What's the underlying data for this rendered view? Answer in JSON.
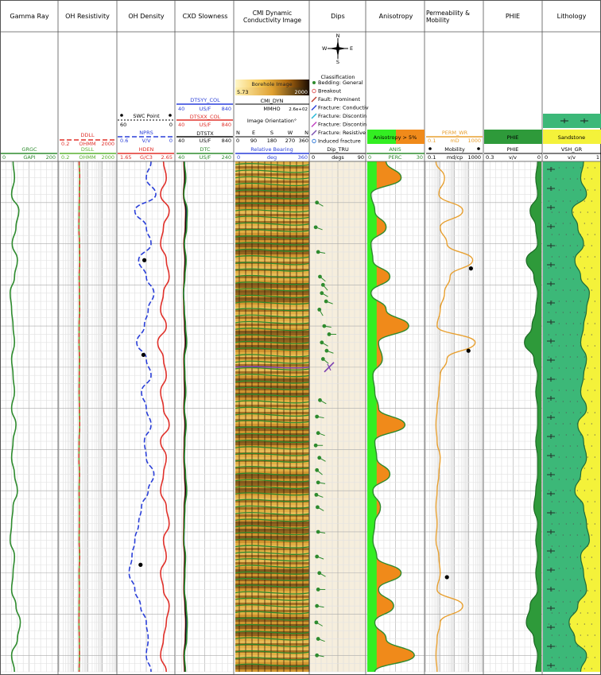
{
  "tracks": [
    {
      "title": "Gamma Ray"
    },
    {
      "title": "OH Resistivity"
    },
    {
      "title": "OH Density"
    },
    {
      "title": "CXD Slowness"
    },
    {
      "title": "CMI Dynamic Conductivity Image"
    },
    {
      "title": "Dips"
    },
    {
      "title": "Anisotropy"
    },
    {
      "title": "Permeability & Mobility"
    },
    {
      "title": "PHIE"
    },
    {
      "title": "Lithology"
    }
  ],
  "headers": {
    "gr": {
      "curve": "GRGC",
      "left": "0",
      "unit": "GAPI",
      "right": "200",
      "color": "#2e8b2e"
    },
    "res": {
      "ddll": {
        "curve": "DDLL",
        "left": "0.2",
        "unit": "OHMM",
        "right": "2000",
        "color": "#e0302a"
      },
      "dsll": {
        "curve": "DSLL",
        "left": "0.2",
        "unit": "OHMM",
        "right": "2000",
        "color": "#5ab030"
      }
    },
    "den": {
      "swc": {
        "label": "SWC Point",
        "left": "60",
        "right": "0"
      },
      "nprs": {
        "curve": "NPRS",
        "left": "0.6",
        "unit": "V/V",
        "right": "0",
        "color": "#2a3fd8"
      },
      "hden": {
        "curve": "HDEN",
        "left": "1.65",
        "unit": "G/C3",
        "right": "2.65",
        "color": "#e0302a"
      }
    },
    "son": {
      "dtsyy": {
        "curve": "DTSYY_COL",
        "left": "40",
        "unit": "US/F",
        "right": "840",
        "color": "#2a3fd8"
      },
      "dtsxx": {
        "curve": "DTSXX_COL",
        "left": "40",
        "unit": "US/F",
        "right": "840",
        "color": "#e0302a"
      },
      "dtstx": {
        "curve": "DTSTX",
        "left": "40",
        "unit": "US/F",
        "right": "840",
        "color": "#111111"
      },
      "dtc": {
        "curve": "DTC",
        "left": "40",
        "unit": "US/F",
        "right": "240",
        "color": "#2e8b2e"
      }
    },
    "img": {
      "borehole_label": "Borehole Image",
      "bh_left": "5.73",
      "bh_right": "2000",
      "cmi_label": "CMI_DYN",
      "cmi_unit": "MMHO",
      "cmi_right": "2.6e+02",
      "orientation_label": "Image Orientation°",
      "compass": [
        "N",
        "E",
        "S",
        "W",
        "N"
      ],
      "degrees": [
        "0",
        "90",
        "180",
        "270",
        "360"
      ],
      "rb_curve": "Relative Bearing",
      "rb_left": "0",
      "rb_unit": "deg",
      "rb_right": "360"
    },
    "dips": {
      "compass": [
        "N",
        "E",
        "S",
        "W"
      ],
      "classification_title": "Classification",
      "classes": [
        {
          "label": "Bedding: General",
          "color": "#2e8b2e",
          "symbol": "dot"
        },
        {
          "label": "Breakout",
          "color": "#e06060",
          "symbol": "ring"
        },
        {
          "label": "Fault: Prominent",
          "color": "#c0392b",
          "symbol": "slash"
        },
        {
          "label": "Fracture: Conductiv",
          "color": "#2a3fd8",
          "symbol": "slash"
        },
        {
          "label": "Fracture: Discontin",
          "color": "#22b8d8",
          "symbol": "slash"
        },
        {
          "label": "Fracture: Discontin",
          "color": "#c040c0",
          "symbol": "slash"
        },
        {
          "label": "Fracture: Resistive",
          "color": "#7a4fb0",
          "symbol": "slash"
        },
        {
          "label": "Induced fracture",
          "color": "#3a7fd8",
          "symbol": "ring"
        }
      ],
      "curve": "Dip_TRU",
      "left": "0",
      "unit": "degs",
      "right": "90"
    },
    "anis": {
      "fill_label": "Anisotropy > 5%",
      "curve": "ANIS",
      "left": "0",
      "unit": "PERC",
      "right": "30"
    },
    "perm": {
      "perm_curve": "PERM_WR",
      "perm_left": "0.1",
      "perm_unit": "mD",
      "perm_right": "1000",
      "mob_curve": "Mobility",
      "mob_left": "0.1",
      "mob_unit": "md/cp",
      "mob_right": "1000"
    },
    "phie": {
      "fill_label": "PHIE",
      "curve": "PHIE",
      "left": "0.3",
      "unit": "v/v",
      "right": "0"
    },
    "litho": {
      "sand_label": "Sandstone",
      "curve": "VSH_GR",
      "left": "0",
      "unit": "v/v",
      "right": "1"
    }
  },
  "chart_data": {
    "type": "line",
    "title": "",
    "depth": [
      0,
      20,
      40,
      60,
      80,
      100,
      120,
      140,
      160,
      180,
      200,
      220,
      240,
      260,
      280,
      300,
      320,
      340,
      360,
      380,
      400,
      420,
      440,
      460,
      480,
      500,
      520,
      540,
      560,
      580,
      600,
      620
    ],
    "series": [
      {
        "name": "GRGC",
        "unit": "GAPI",
        "range": [
          0,
          200
        ],
        "values": [
          45,
          50,
          40,
          65,
          55,
          42,
          60,
          50,
          35,
          40,
          45,
          50,
          40,
          45,
          50,
          40,
          55,
          45,
          40,
          50,
          60,
          45,
          40,
          35,
          50,
          45,
          40,
          55,
          70,
          60,
          40,
          50
        ]
      },
      {
        "name": "DDLL",
        "unit": "OHMM",
        "range": [
          0.2,
          2000
        ],
        "scale": "log",
        "values": [
          5,
          5.5,
          5.2,
          5,
          4.8,
          5.3,
          5.5,
          5,
          5.2,
          5.4,
          5,
          4.9,
          5.3,
          5.1,
          5,
          5.2,
          5.5,
          5,
          4.8,
          5.3,
          5,
          5.2,
          5.1,
          5,
          5.4,
          5,
          5.2,
          5,
          4.9,
          5.1,
          5.3,
          5
        ]
      },
      {
        "name": "DSLL",
        "unit": "OHMM",
        "range": [
          0.2,
          2000
        ],
        "scale": "log",
        "values": [
          5,
          5.4,
          5.2,
          5,
          4.9,
          5.2,
          5.4,
          5.1,
          5.2,
          5.3,
          5,
          5,
          5.2,
          5.1,
          5,
          5.2,
          5.4,
          5,
          4.9,
          5.2,
          5,
          5.1,
          5.1,
          5,
          5.3,
          5,
          5.1,
          5,
          4.9,
          5.1,
          5.2,
          5
        ]
      },
      {
        "name": "NPRS",
        "unit": "V/V",
        "range": [
          0.6,
          0
        ],
        "values": [
          0.25,
          0.3,
          0.2,
          0.42,
          0.3,
          0.25,
          0.38,
          0.3,
          0.22,
          0.28,
          0.32,
          0.4,
          0.3,
          0.25,
          0.35,
          0.3,
          0.25,
          0.32,
          0.3,
          0.22,
          0.28,
          0.35,
          0.38,
          0.42,
          0.45,
          0.48,
          0.42,
          0.36,
          0.3,
          0.28,
          0.3,
          0.25
        ]
      },
      {
        "name": "HDEN",
        "unit": "G/C3",
        "range": [
          1.65,
          2.65
        ],
        "values": [
          2.45,
          2.5,
          2.4,
          2.55,
          2.45,
          2.4,
          2.5,
          2.55,
          2.45,
          2.4,
          2.5,
          2.35,
          2.45,
          2.5,
          2.4,
          2.45,
          2.55,
          2.4,
          2.5,
          2.45,
          2.4,
          2.5,
          2.55,
          2.45,
          2.5,
          2.4,
          2.45,
          2.55,
          2.5,
          2.45,
          2.4,
          2.5
        ]
      },
      {
        "name": "DTSYY_COL",
        "unit": "US/F",
        "range": [
          40,
          840
        ],
        "values": [
          160,
          170,
          150,
          190,
          180,
          160,
          175,
          165,
          150,
          160,
          170,
          180,
          160,
          165,
          170,
          160,
          175,
          165,
          160,
          170,
          180,
          165,
          160,
          155,
          170,
          165,
          160,
          175,
          185,
          180,
          160,
          170
        ]
      },
      {
        "name": "DTSXX_COL",
        "unit": "US/F",
        "range": [
          40,
          840
        ],
        "values": [
          150,
          160,
          145,
          175,
          170,
          150,
          165,
          155,
          145,
          150,
          160,
          170,
          150,
          155,
          160,
          150,
          165,
          155,
          150,
          160,
          170,
          155,
          150,
          145,
          160,
          155,
          150,
          165,
          175,
          170,
          150,
          160
        ]
      },
      {
        "name": "DTSTX",
        "unit": "US/F",
        "range": [
          40,
          840
        ],
        "values": [
          155,
          165,
          148,
          180,
          175,
          155,
          170,
          160,
          148,
          155,
          165,
          175,
          155,
          160,
          165,
          155,
          170,
          160,
          155,
          165,
          175,
          160,
          155,
          150,
          165,
          160,
          155,
          170,
          180,
          175,
          155,
          165
        ]
      },
      {
        "name": "DTC",
        "unit": "US/F",
        "range": [
          40,
          240
        ],
        "values": [
          70,
          75,
          68,
          80,
          78,
          70,
          76,
          72,
          67,
          70,
          74,
          78,
          70,
          72,
          75,
          70,
          76,
          72,
          70,
          74,
          78,
          72,
          70,
          68,
          74,
          72,
          70,
          76,
          80,
          78,
          70,
          74
        ]
      },
      {
        "name": "ANIS",
        "unit": "PERC",
        "range": [
          0,
          30
        ],
        "values": [
          10,
          18,
          2,
          4,
          10,
          2,
          3,
          12,
          2,
          10,
          22,
          6,
          8,
          3,
          4,
          6,
          20,
          4,
          5,
          12,
          3,
          7,
          4,
          3,
          5,
          18,
          6,
          14,
          4,
          10,
          25,
          4
        ]
      },
      {
        "name": "PERM_WR",
        "unit": "mD",
        "range": [
          0.1,
          1000
        ],
        "scale": "log",
        "values": [
          0.5,
          2,
          0.8,
          40,
          1,
          3,
          200,
          5,
          2,
          1,
          0.6,
          300,
          3,
          1,
          0.8,
          0.6,
          0.5,
          0.6,
          1,
          0.8,
          0.6,
          0.5,
          0.6,
          0.5,
          0.8,
          1,
          0.6,
          40,
          1,
          0.6,
          0.5,
          0.6
        ]
      },
      {
        "name": "PHIE",
        "unit": "v/v",
        "range": [
          0.3,
          0
        ],
        "values": [
          0.02,
          0.03,
          0.02,
          0.06,
          0.03,
          0.02,
          0.08,
          0.04,
          0.02,
          0.03,
          0.05,
          0.09,
          0.04,
          0.02,
          0.03,
          0.02,
          0.02,
          0.03,
          0.02,
          0.02,
          0.03,
          0.04,
          0.02,
          0.03,
          0.02,
          0.03,
          0.02,
          0.06,
          0.08,
          0.04,
          0.02,
          0.03
        ]
      },
      {
        "name": "VSH_GR",
        "unit": "v/v",
        "range": [
          0,
          1
        ],
        "values": [
          0.3,
          0.35,
          0.25,
          0.5,
          0.4,
          0.3,
          0.45,
          0.35,
          0.2,
          0.25,
          0.3,
          0.35,
          0.25,
          0.3,
          0.35,
          0.25,
          0.4,
          0.3,
          0.25,
          0.35,
          0.45,
          0.3,
          0.25,
          0.2,
          0.35,
          0.3,
          0.25,
          0.4,
          0.55,
          0.45,
          0.25,
          0.35
        ]
      }
    ],
    "swc_points": [
      {
        "depth": 120,
        "value": 0.32
      },
      {
        "depth": 235,
        "value": 0.33
      },
      {
        "depth": 490,
        "value": 0.36
      }
    ],
    "mobility_points": [
      {
        "depth": 130,
        "value": 150
      },
      {
        "depth": 230,
        "value": 100
      },
      {
        "depth": 505,
        "value": 3
      }
    ],
    "dips": [
      {
        "depth": 50,
        "dip": 10,
        "azimuth": 120
      },
      {
        "depth": 80,
        "dip": 8,
        "azimuth": 110
      },
      {
        "depth": 110,
        "dip": 12,
        "azimuth": 100
      },
      {
        "depth": 140,
        "dip": 15,
        "azimuth": 130
      },
      {
        "depth": 150,
        "dip": 20,
        "azimuth": 140
      },
      {
        "depth": 160,
        "dip": 18,
        "azimuth": 120
      },
      {
        "depth": 170,
        "dip": 25,
        "azimuth": 110
      },
      {
        "depth": 180,
        "dip": 14,
        "azimuth": 150
      },
      {
        "depth": 200,
        "dip": 22,
        "azimuth": 100
      },
      {
        "depth": 210,
        "dip": 30,
        "azimuth": 90
      },
      {
        "depth": 220,
        "dip": 18,
        "azimuth": 120
      },
      {
        "depth": 230,
        "dip": 26,
        "azimuth": 110
      },
      {
        "depth": 240,
        "dip": 20,
        "azimuth": 130
      },
      {
        "depth": 290,
        "dip": 15,
        "azimuth": 120
      },
      {
        "depth": 310,
        "dip": 10,
        "azimuth": 100
      },
      {
        "depth": 330,
        "dip": 12,
        "azimuth": 110
      },
      {
        "depth": 345,
        "dip": 8,
        "azimuth": 90
      },
      {
        "depth": 360,
        "dip": 14,
        "azimuth": 120
      },
      {
        "depth": 375,
        "dip": 10,
        "azimuth": 130
      },
      {
        "depth": 390,
        "dip": 12,
        "azimuth": 100
      },
      {
        "depth": 405,
        "dip": 9,
        "azimuth": 110
      },
      {
        "depth": 420,
        "dip": 11,
        "azimuth": 120
      },
      {
        "depth": 450,
        "dip": 12,
        "azimuth": 100
      },
      {
        "depth": 480,
        "dip": 10,
        "azimuth": 110
      },
      {
        "depth": 500,
        "dip": 14,
        "azimuth": 120
      },
      {
        "depth": 520,
        "dip": 12,
        "azimuth": 90
      },
      {
        "depth": 540,
        "dip": 10,
        "azimuth": 100
      },
      {
        "depth": 560,
        "dip": 9,
        "azimuth": 120
      },
      {
        "depth": 580,
        "dip": 12,
        "azimuth": 110
      },
      {
        "depth": 600,
        "dip": 10,
        "azimuth": 100
      }
    ],
    "fault_depth": 250
  }
}
